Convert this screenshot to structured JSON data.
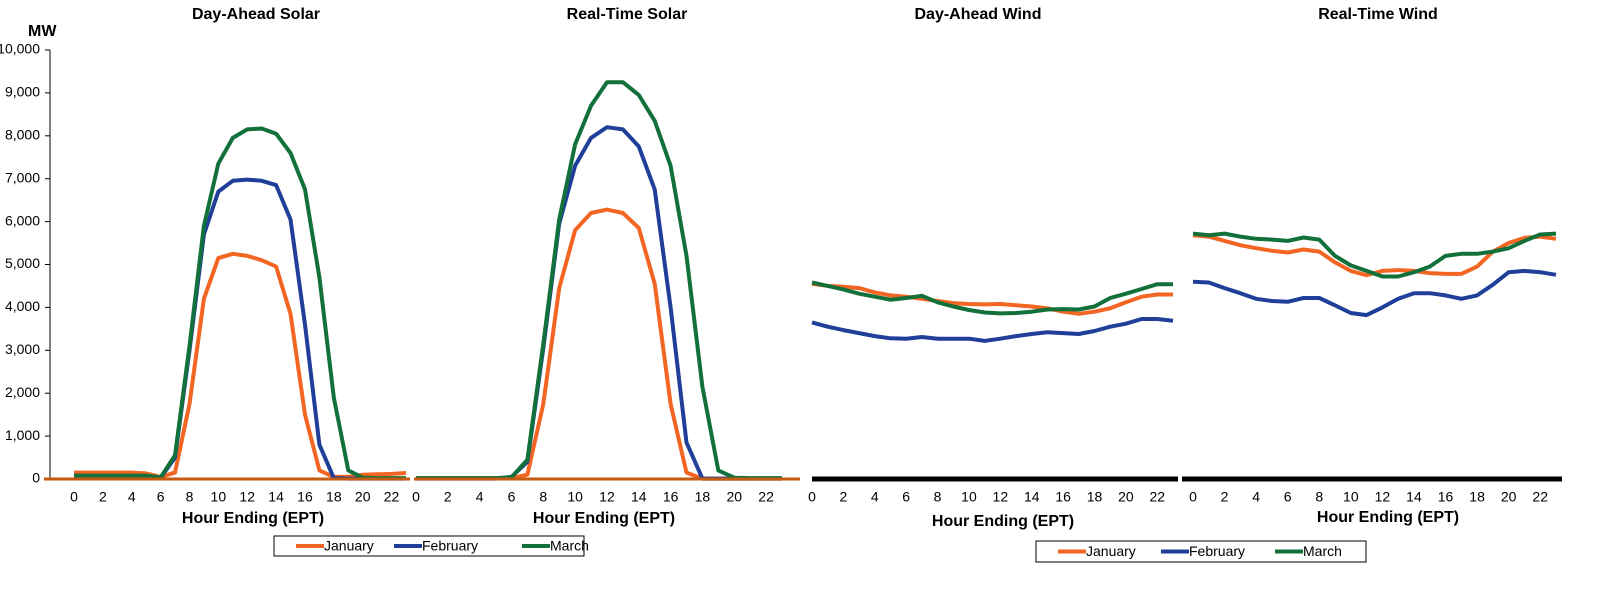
{
  "chart_data": [
    {
      "type": "line",
      "title": "Day-Ahead Solar",
      "ylabel": "MW",
      "xlabel": "Hour Ending (EPT)",
      "x": [
        0,
        1,
        2,
        3,
        4,
        5,
        6,
        7,
        8,
        9,
        10,
        11,
        12,
        13,
        14,
        15,
        16,
        17,
        18,
        19,
        20,
        21,
        22,
        23
      ],
      "xlim": [
        0,
        23
      ],
      "xticks": [
        0,
        2,
        4,
        6,
        8,
        10,
        12,
        14,
        16,
        18,
        20,
        22
      ],
      "ylim": [
        0,
        10000
      ],
      "yticks": [
        0,
        {
          "value": 1000,
          "label": "1,000"
        },
        {
          "value": 2000,
          "label": "2,000"
        },
        {
          "value": 3000,
          "label": "3,000"
        },
        {
          "value": 4000,
          "label": "4,000"
        },
        {
          "value": 5000,
          "label": "5,000"
        },
        {
          "value": 6000,
          "label": "6,000"
        },
        {
          "value": 7000,
          "label": "7,000"
        },
        {
          "value": 8000,
          "label": "8,000"
        },
        {
          "value": 9000,
          "label": "9,000"
        },
        {
          "value": 10000,
          "label": "10,000"
        }
      ],
      "series": [
        {
          "name": "January",
          "color": "#f26522",
          "values": [
            150,
            150,
            150,
            150,
            150,
            130,
            50,
            150,
            1750,
            4200,
            5150,
            5250,
            5200,
            5100,
            4950,
            3850,
            1500,
            200,
            50,
            50,
            100,
            110,
            120,
            140
          ]
        },
        {
          "name": "February",
          "color": "#1f3f99",
          "values": [
            60,
            60,
            60,
            60,
            60,
            60,
            30,
            500,
            3000,
            5700,
            6700,
            6950,
            6980,
            6950,
            6850,
            6050,
            3600,
            800,
            20,
            10,
            10,
            10,
            10,
            10
          ]
        },
        {
          "name": "March",
          "color": "#12703a",
          "values": [
            80,
            80,
            80,
            80,
            80,
            80,
            40,
            550,
            3100,
            5900,
            7350,
            7950,
            8150,
            8170,
            8050,
            7600,
            6750,
            4700,
            1900,
            200,
            30,
            20,
            20,
            20
          ]
        }
      ]
    },
    {
      "type": "line",
      "title": "Real-Time Solar",
      "xlabel": "Hour Ending (EPT)",
      "x": [
        0,
        1,
        2,
        3,
        4,
        5,
        6,
        7,
        8,
        9,
        10,
        11,
        12,
        13,
        14,
        15,
        16,
        17,
        18,
        19,
        20,
        21,
        22,
        23
      ],
      "xlim": [
        0,
        23
      ],
      "xticks": [
        0,
        2,
        4,
        6,
        8,
        10,
        12,
        14,
        16,
        18,
        20,
        22
      ],
      "ylim": [
        0,
        10000
      ],
      "series": [
        {
          "color": "#f26522",
          "values": [
            20,
            20,
            20,
            20,
            20,
            20,
            20,
            100,
            1750,
            4450,
            5800,
            6200,
            6280,
            6200,
            5850,
            4550,
            1750,
            150,
            10,
            10,
            10,
            10,
            10,
            10
          ]
        },
        {
          "color": "#1f3f99",
          "values": [
            10,
            10,
            10,
            10,
            10,
            10,
            50,
            400,
            3050,
            5950,
            7300,
            7950,
            8200,
            8150,
            7750,
            6750,
            4000,
            850,
            10,
            10,
            10,
            10,
            10,
            10
          ]
        },
        {
          "color": "#12703a",
          "values": [
            20,
            20,
            20,
            20,
            20,
            20,
            40,
            450,
            3150,
            6050,
            7800,
            8700,
            9250,
            9250,
            8950,
            8350,
            7300,
            5200,
            2150,
            200,
            30,
            20,
            20,
            20
          ]
        }
      ]
    },
    {
      "type": "line",
      "title": "Day-Ahead Wind",
      "xlabel": "Hour Ending (EPT)",
      "x": [
        0,
        1,
        2,
        3,
        4,
        5,
        6,
        7,
        8,
        9,
        10,
        11,
        12,
        13,
        14,
        15,
        16,
        17,
        18,
        19,
        20,
        21,
        22,
        23
      ],
      "xlim": [
        0,
        23
      ],
      "xticks": [
        0,
        2,
        4,
        6,
        8,
        10,
        12,
        14,
        16,
        18,
        20,
        22
      ],
      "ylim": [
        0,
        10000
      ],
      "series": [
        {
          "name": "January",
          "color": "#f26522",
          "values": [
            4550,
            4500,
            4480,
            4450,
            4350,
            4280,
            4250,
            4200,
            4150,
            4100,
            4080,
            4070,
            4080,
            4050,
            4020,
            3980,
            3900,
            3850,
            3900,
            3980,
            4120,
            4250,
            4300,
            4300
          ]
        },
        {
          "name": "February",
          "color": "#1f3f99",
          "values": [
            3650,
            3550,
            3470,
            3400,
            3330,
            3280,
            3270,
            3310,
            3270,
            3270,
            3270,
            3220,
            3270,
            3330,
            3380,
            3420,
            3400,
            3380,
            3450,
            3550,
            3620,
            3730,
            3730,
            3690
          ]
        },
        {
          "name": "March",
          "color": "#12703a",
          "values": [
            4580,
            4500,
            4420,
            4320,
            4250,
            4180,
            4220,
            4270,
            4120,
            4020,
            3940,
            3880,
            3860,
            3870,
            3900,
            3950,
            3960,
            3950,
            4020,
            4220,
            4320,
            4430,
            4540,
            4540
          ]
        }
      ]
    },
    {
      "type": "line",
      "title": "Real-Time Wind",
      "xlabel": "Hour Ending (EPT)",
      "x": [
        0,
        1,
        2,
        3,
        4,
        5,
        6,
        7,
        8,
        9,
        10,
        11,
        12,
        13,
        14,
        15,
        16,
        17,
        18,
        19,
        20,
        21,
        22,
        23
      ],
      "xlim": [
        0,
        23
      ],
      "xticks": [
        0,
        2,
        4,
        6,
        8,
        10,
        12,
        14,
        16,
        18,
        20,
        22
      ],
      "ylim": [
        0,
        10000
      ],
      "series": [
        {
          "color": "#f26522",
          "values": [
            5680,
            5650,
            5550,
            5450,
            5380,
            5320,
            5280,
            5350,
            5300,
            5050,
            4850,
            4750,
            4850,
            4870,
            4850,
            4800,
            4780,
            4780,
            4950,
            5300,
            5500,
            5620,
            5650,
            5600
          ]
        },
        {
          "color": "#1f3f99",
          "values": [
            4600,
            4580,
            4450,
            4330,
            4200,
            4150,
            4130,
            4220,
            4220,
            4050,
            3870,
            3820,
            4000,
            4200,
            4330,
            4330,
            4280,
            4200,
            4280,
            4530,
            4820,
            4850,
            4820,
            4760
          ]
        },
        {
          "color": "#12703a",
          "values": [
            5720,
            5680,
            5720,
            5650,
            5600,
            5580,
            5550,
            5630,
            5580,
            5200,
            4980,
            4850,
            4720,
            4720,
            4820,
            4950,
            5200,
            5250,
            5250,
            5300,
            5380,
            5550,
            5700,
            5720
          ]
        }
      ]
    }
  ]
}
